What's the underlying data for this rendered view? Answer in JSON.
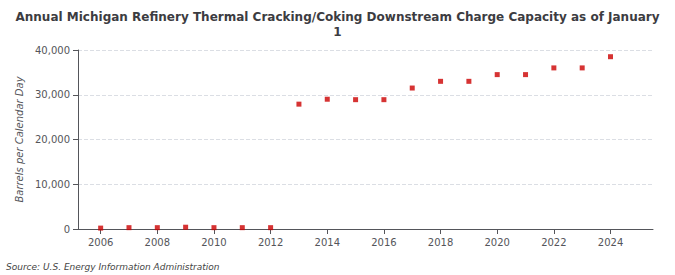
{
  "chart_data": {
    "type": "scatter",
    "title": "Annual Michigan Refinery Thermal Cracking/Coking Downstream Charge Capacity as of January\n1",
    "ylabel": "Barrels per Calendar Day",
    "annotation": "Source: U.S. Energy Information Administration",
    "x": [
      2006,
      2007,
      2008,
      2009,
      2010,
      2011,
      2012,
      2013,
      2014,
      2015,
      2016,
      2017,
      2018,
      2019,
      2020,
      2021,
      2022,
      2023,
      2024
    ],
    "values": [
      200,
      300,
      300,
      400,
      300,
      300,
      300,
      27900,
      29000,
      28900,
      28900,
      31500,
      33000,
      33000,
      34500,
      34500,
      36000,
      36000,
      38500
    ],
    "color": "#cc0000",
    "marker": "square",
    "xlim": [
      2005.2,
      2025.5
    ],
    "xticks": [
      2006,
      2008,
      2010,
      2012,
      2014,
      2016,
      2018,
      2020,
      2022,
      2024
    ],
    "ylim": [
      0,
      40000
    ],
    "yticks": [
      0,
      {
        "value": 10000,
        "label": "10,000"
      },
      {
        "value": 20000,
        "label": "20,000"
      },
      {
        "value": 30000,
        "label": "30,000"
      },
      {
        "value": 40000,
        "label": "40,000"
      }
    ],
    "grid": true
  }
}
